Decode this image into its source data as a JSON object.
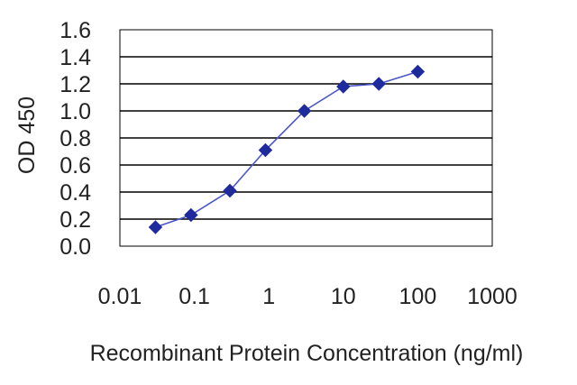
{
  "chart_data": {
    "type": "line",
    "title": "",
    "xlabel": "Recombinant Protein Concentration (ng/ml)",
    "ylabel": "OD 450",
    "x_scale": "log",
    "xlim": [
      0.01,
      1000
    ],
    "ylim": [
      0.0,
      1.6
    ],
    "x_ticks": [
      "0.01",
      "0.1",
      "1",
      "10",
      "100",
      "1000"
    ],
    "y_ticks": [
      "0.0",
      "0.2",
      "0.4",
      "0.6",
      "0.8",
      "1.0",
      "1.2",
      "1.4",
      "1.6"
    ],
    "grid": "horizontal",
    "legend": "none",
    "series": [
      {
        "color": "#1f2a9c",
        "marker": "diamond",
        "x": [
          0.03,
          0.09,
          0.3,
          0.9,
          3,
          10,
          30,
          100
        ],
        "y": [
          0.14,
          0.23,
          0.41,
          0.71,
          1.0,
          1.18,
          1.2,
          1.29
        ]
      }
    ]
  }
}
